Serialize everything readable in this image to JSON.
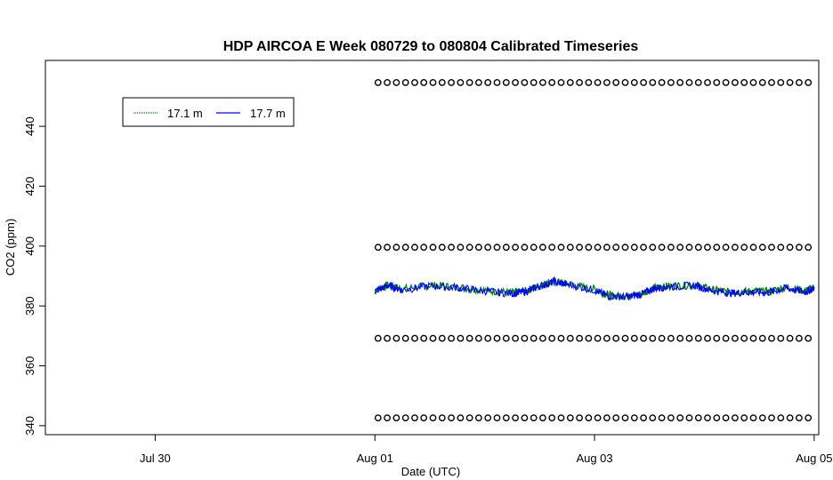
{
  "chart_data": {
    "type": "line",
    "title": "HDP AIRCOA E  Week 080729 to 080804  Calibrated Timeseries",
    "xlabel": "Date (UTC)",
    "ylabel": "CO2 (ppm)",
    "x_axis": {
      "type": "date",
      "range": [
        "2008-07-29T00:00",
        "2008-08-05T01:00"
      ],
      "ticks": [
        {
          "value": "2008-07-30T00:00",
          "label": "Jul 30"
        },
        {
          "value": "2008-08-01T00:00",
          "label": "Aug 01"
        },
        {
          "value": "2008-08-03T00:00",
          "label": "Aug 03"
        },
        {
          "value": "2008-08-05T00:00",
          "label": "Aug 05"
        }
      ]
    },
    "y_axis": {
      "range": [
        337,
        462
      ],
      "ticks": [
        {
          "value": 340,
          "label": "340"
        },
        {
          "value": 360,
          "label": "360"
        },
        {
          "value": 380,
          "label": "380"
        },
        {
          "value": 400,
          "label": "400"
        },
        {
          "value": 420,
          "label": "420"
        },
        {
          "value": 440,
          "label": "440"
        }
      ]
    },
    "grid": false,
    "legend_position": "top-left",
    "legend": [
      {
        "label": "17.1 m",
        "color": "#008000"
      },
      {
        "label": "17.7 m",
        "color": "#0000ff"
      }
    ],
    "series": [
      {
        "name": "17.1 m",
        "color": "#008000",
        "points": [
          [
            "2008-08-01T00:00",
            385.2
          ],
          [
            "2008-08-01T03:00",
            387.0
          ],
          [
            "2008-08-01T06:00",
            385.6
          ],
          [
            "2008-08-01T12:00",
            386.9
          ],
          [
            "2008-08-01T18:00",
            386.3
          ],
          [
            "2008-08-02T00:00",
            385.2
          ],
          [
            "2008-08-02T06:00",
            384.4
          ],
          [
            "2008-08-02T09:00",
            385.0
          ],
          [
            "2008-08-02T12:00",
            386.8
          ],
          [
            "2008-08-02T15:00",
            388.2
          ],
          [
            "2008-08-02T18:00",
            387.4
          ],
          [
            "2008-08-03T00:00",
            385.5
          ],
          [
            "2008-08-03T03:00",
            383.6
          ],
          [
            "2008-08-03T07:00",
            383.3
          ],
          [
            "2008-08-03T10:00",
            384.0
          ],
          [
            "2008-08-03T13:00",
            386.0
          ],
          [
            "2008-08-03T16:00",
            386.6
          ],
          [
            "2008-08-03T22:00",
            387.0
          ],
          [
            "2008-08-04T02:00",
            385.3
          ],
          [
            "2008-08-04T06:00",
            384.6
          ],
          [
            "2008-08-04T10:00",
            384.9
          ],
          [
            "2008-08-04T14:00",
            384.8
          ],
          [
            "2008-08-04T18:00",
            386.2
          ],
          [
            "2008-08-04T22:00",
            385.0
          ],
          [
            "2008-08-05T00:00",
            386.3
          ]
        ]
      },
      {
        "name": "17.7 m",
        "color": "#0000ff",
        "points": [
          [
            "2008-08-01T00:00",
            385.0
          ],
          [
            "2008-08-01T03:00",
            386.8
          ],
          [
            "2008-08-01T06:00",
            385.3
          ],
          [
            "2008-08-01T12:00",
            386.7
          ],
          [
            "2008-08-01T18:00",
            386.1
          ],
          [
            "2008-08-02T00:00",
            385.0
          ],
          [
            "2008-08-02T06:00",
            384.1
          ],
          [
            "2008-08-02T09:00",
            384.8
          ],
          [
            "2008-08-02T12:00",
            386.6
          ],
          [
            "2008-08-02T15:00",
            388.0
          ],
          [
            "2008-08-02T18:00",
            387.2
          ],
          [
            "2008-08-03T00:00",
            385.3
          ],
          [
            "2008-08-03T03:00",
            383.3
          ],
          [
            "2008-08-03T07:00",
            383.0
          ],
          [
            "2008-08-03T10:00",
            383.8
          ],
          [
            "2008-08-03T13:00",
            385.8
          ],
          [
            "2008-08-03T16:00",
            386.4
          ],
          [
            "2008-08-03T22:00",
            386.8
          ],
          [
            "2008-08-04T02:00",
            385.0
          ],
          [
            "2008-08-04T06:00",
            384.3
          ],
          [
            "2008-08-04T10:00",
            384.6
          ],
          [
            "2008-08-04T14:00",
            384.5
          ],
          [
            "2008-08-04T18:00",
            386.0
          ],
          [
            "2008-08-04T22:00",
            384.6
          ],
          [
            "2008-08-05T00:00",
            386.0
          ]
        ]
      },
      {
        "name": "",
        "type": "scatter",
        "marker": "open-circle",
        "color": "#000000",
        "levels": [
          454.6,
          399.6,
          369.2,
          342.6
        ],
        "x_start": "2008-08-01T00:00",
        "x_end": "2008-08-05T00:00",
        "interval_hours": 2.0
      }
    ]
  }
}
